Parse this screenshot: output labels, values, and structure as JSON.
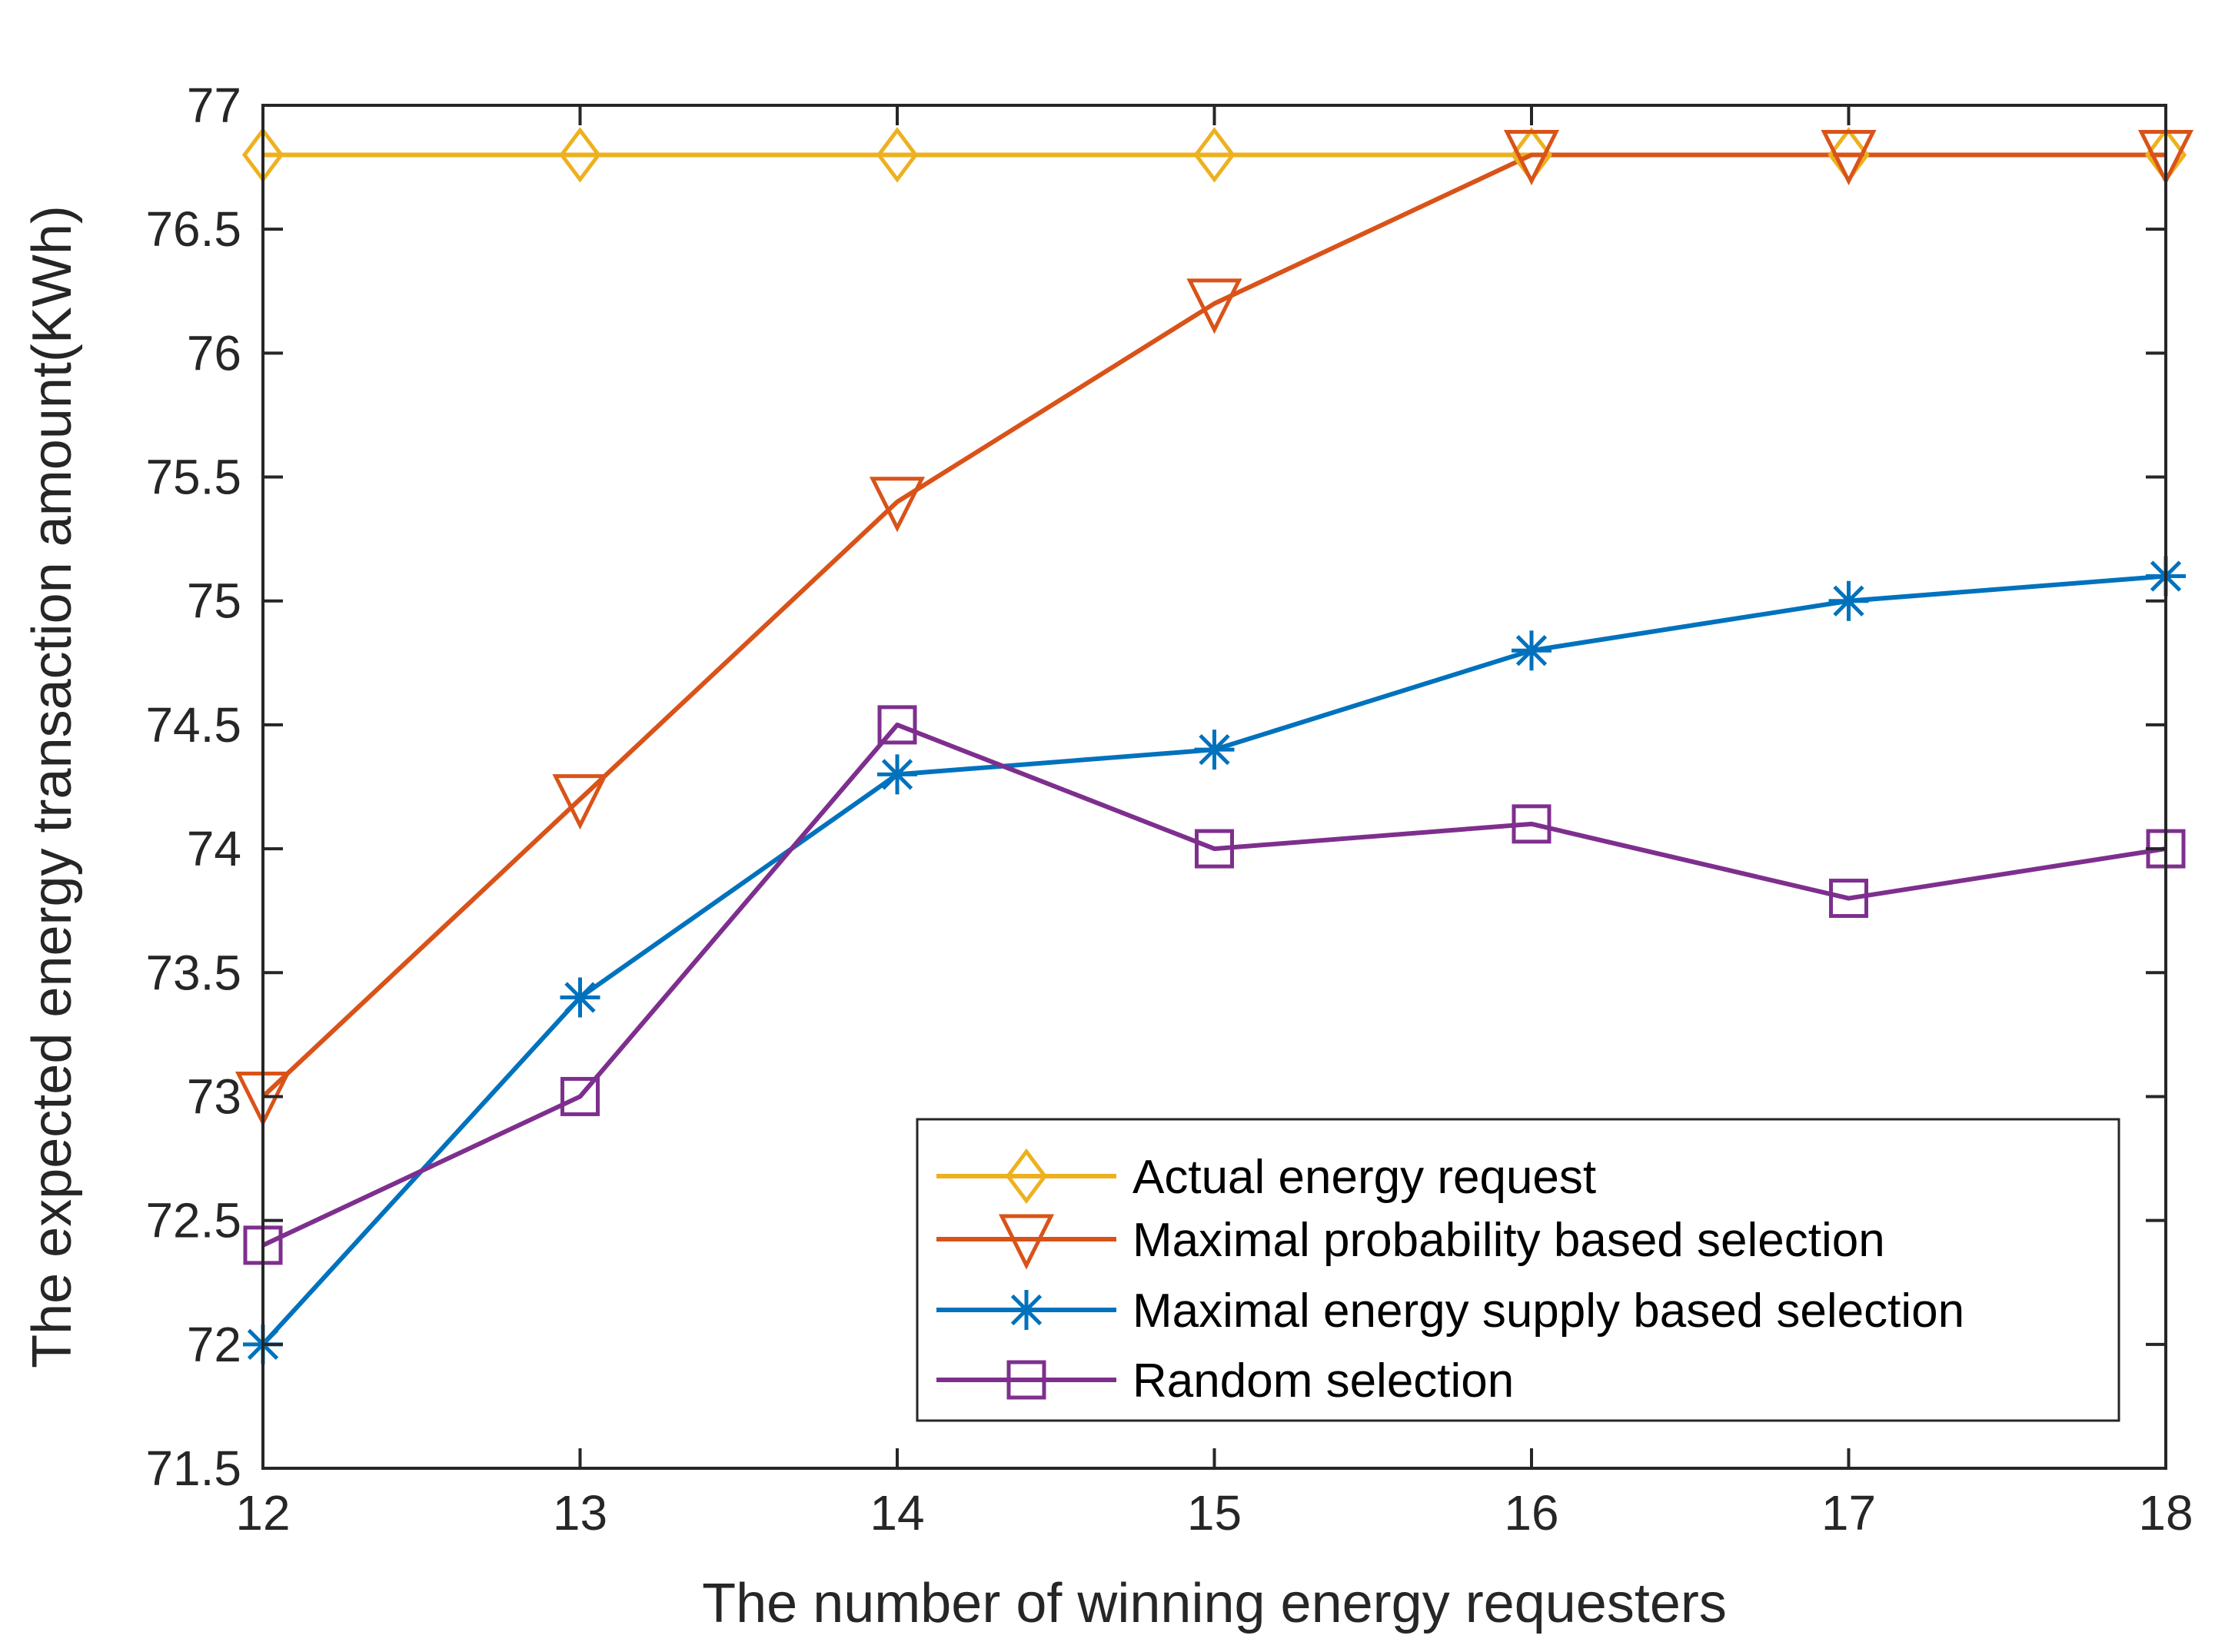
{
  "chart_data": {
    "type": "line",
    "title": "",
    "xlabel": "The number of winning energy requesters",
    "ylabel": "The expected energy transaction amount(KWh)",
    "xlim": [
      12,
      18
    ],
    "ylim": [
      71.5,
      77
    ],
    "x": [
      12,
      13,
      14,
      15,
      16,
      17,
      18
    ],
    "xticks": [
      "12",
      "13",
      "14",
      "15",
      "16",
      "17",
      "18"
    ],
    "yticks": [
      "71.5",
      "72",
      "72.5",
      "73",
      "73.5",
      "74",
      "74.5",
      "75",
      "75.5",
      "76",
      "76.5",
      "77"
    ],
    "ytick_values": [
      71.5,
      72,
      72.5,
      73,
      73.5,
      74,
      74.5,
      75,
      75.5,
      76,
      76.5,
      77
    ],
    "grid": false,
    "legend_position": "bottom-right",
    "series": [
      {
        "name": "Actual energy request",
        "color": "#EDB120",
        "marker": "diamond",
        "values": [
          76.8,
          76.8,
          76.8,
          76.8,
          76.8,
          76.8,
          76.8
        ]
      },
      {
        "name": "Maximal probability based selection",
        "color": "#D95319",
        "marker": "triangle-down",
        "values": [
          73.0,
          74.2,
          75.4,
          76.2,
          76.8,
          76.8,
          76.8
        ]
      },
      {
        "name": "Maximal energy supply based selection",
        "color": "#0072BD",
        "marker": "asterisk",
        "values": [
          72.0,
          73.4,
          74.3,
          74.4,
          74.8,
          75.0,
          75.1
        ]
      },
      {
        "name": "Random selection",
        "color": "#7E2F8E",
        "marker": "square",
        "values": [
          72.4,
          73.0,
          74.5,
          74.0,
          74.1,
          73.8,
          74.0
        ]
      }
    ]
  }
}
